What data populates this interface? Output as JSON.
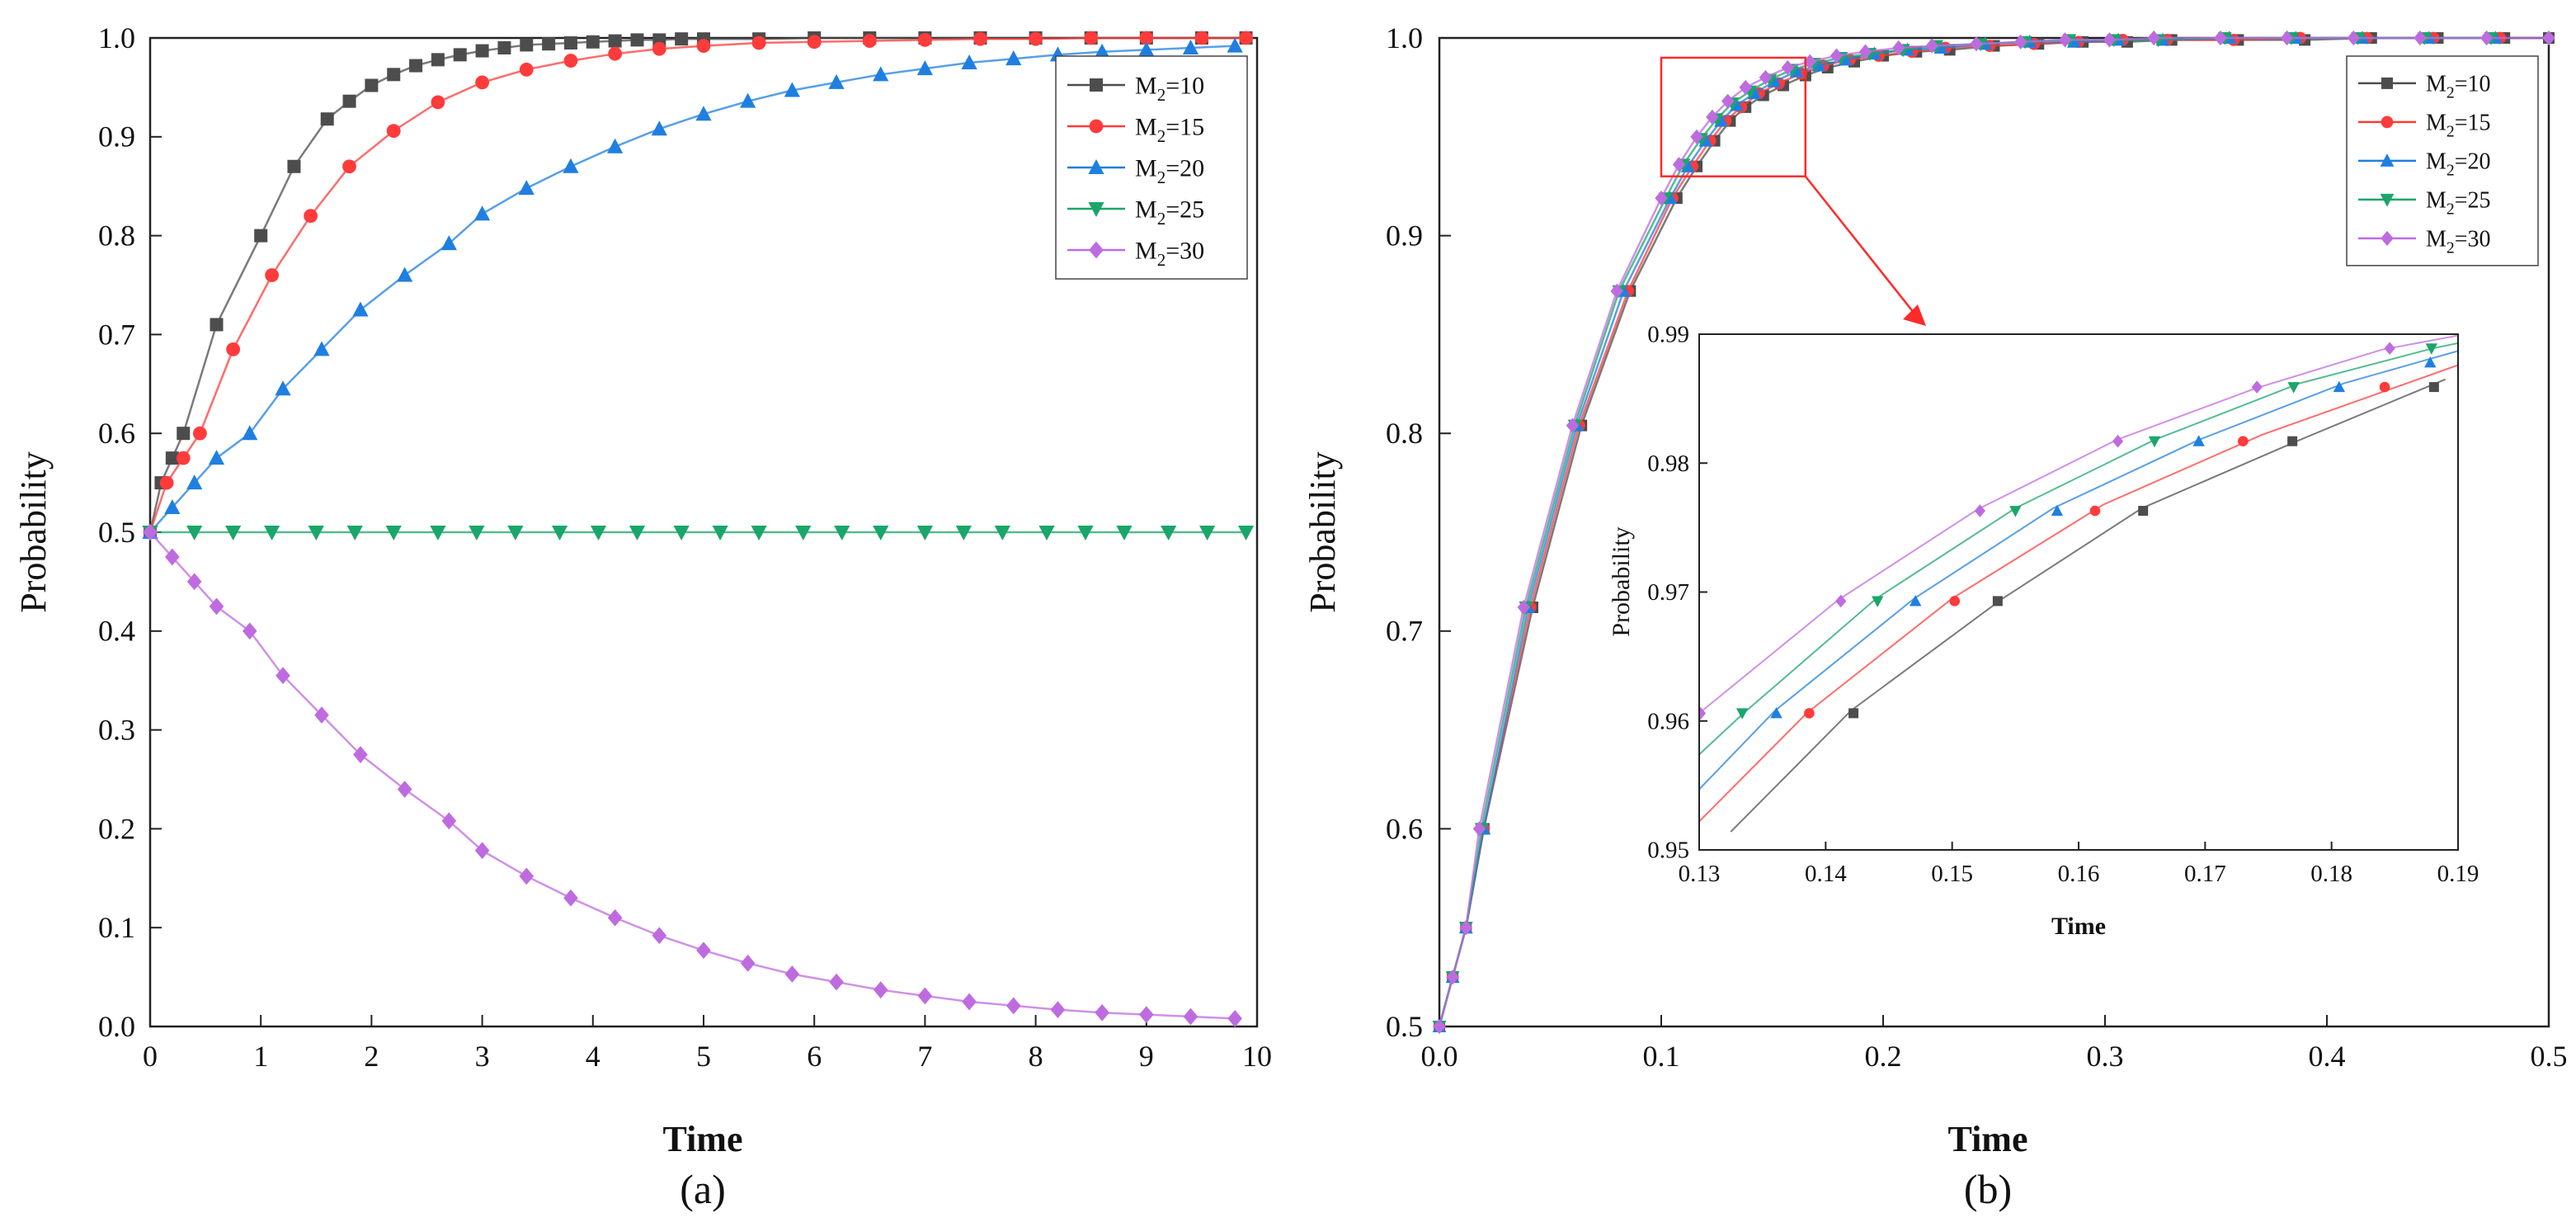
{
  "colors": {
    "M2=10": "#4d4d4d",
    "M2=15": "#ff3b3b",
    "M2=20": "#1f7fe0",
    "M2=25": "#1aa66a",
    "M2=30": "#bf6be0"
  },
  "chart_data": [
    {
      "id": "a",
      "type": "line",
      "panel_label": "(a)",
      "xlabel": "Time",
      "ylabel": "Probability",
      "xlim": [
        0,
        10
      ],
      "ylim": [
        0,
        1
      ],
      "xticks": [
        "0",
        "1",
        "2",
        "3",
        "4",
        "5",
        "6",
        "7",
        "8",
        "9",
        "10"
      ],
      "yticks": [
        "0.0",
        "0.1",
        "0.2",
        "0.3",
        "0.4",
        "0.5",
        "0.6",
        "0.7",
        "0.8",
        "0.9",
        "1.0"
      ],
      "legend_position": "top-right",
      "series": [
        {
          "name": "M2=10",
          "label_main": "M",
          "label_sub": "2",
          "label_rest": "=10",
          "marker": "square",
          "x": [
            0,
            0.1,
            0.2,
            0.3,
            0.6,
            1.0,
            1.3,
            1.6,
            1.8,
            2.0,
            2.2,
            2.4,
            2.6,
            2.8,
            3.0,
            3.2,
            3.4,
            3.6,
            3.8,
            4.0,
            4.2,
            4.4,
            4.6,
            4.8,
            5.0,
            5.5,
            6.0,
            6.5,
            7.0,
            7.5,
            8.0,
            8.5,
            9.0,
            9.5,
            9.9
          ],
          "y": [
            0.5,
            0.55,
            0.575,
            0.6,
            0.71,
            0.8,
            0.87,
            0.918,
            0.936,
            0.952,
            0.963,
            0.972,
            0.978,
            0.983,
            0.987,
            0.99,
            0.993,
            0.994,
            0.995,
            0.996,
            0.997,
            0.998,
            0.998,
            0.999,
            0.999,
            0.999,
            1.0,
            1.0,
            1.0,
            1.0,
            1.0,
            1.0,
            1.0,
            1.0,
            1.0
          ]
        },
        {
          "name": "M2=15",
          "label_main": "M",
          "label_sub": "2",
          "label_rest": "=15",
          "marker": "circle",
          "x": [
            0,
            0.15,
            0.3,
            0.45,
            0.75,
            1.1,
            1.45,
            1.8,
            2.2,
            2.6,
            3.0,
            3.4,
            3.8,
            4.2,
            4.6,
            5.0,
            5.5,
            6.0,
            6.5,
            7.0,
            7.5,
            8.0,
            8.5,
            9.0,
            9.5,
            9.9
          ],
          "y": [
            0.5,
            0.55,
            0.575,
            0.6,
            0.685,
            0.76,
            0.82,
            0.87,
            0.906,
            0.935,
            0.955,
            0.968,
            0.977,
            0.984,
            0.989,
            0.992,
            0.995,
            0.996,
            0.997,
            0.998,
            0.999,
            0.999,
            1.0,
            1.0,
            1.0,
            1.0
          ]
        },
        {
          "name": "M2=20",
          "label_main": "M",
          "label_sub": "2",
          "label_rest": "=20",
          "marker": "triangle-up",
          "x": [
            0,
            0.2,
            0.4,
            0.6,
            0.9,
            1.2,
            1.55,
            1.9,
            2.3,
            2.7,
            3.0,
            3.4,
            3.8,
            4.2,
            4.6,
            5.0,
            5.4,
            5.8,
            6.2,
            6.6,
            7.0,
            7.4,
            7.8,
            8.2,
            8.6,
            9.0,
            9.4,
            9.8
          ],
          "y": [
            0.5,
            0.525,
            0.55,
            0.575,
            0.6,
            0.645,
            0.685,
            0.725,
            0.76,
            0.792,
            0.822,
            0.848,
            0.87,
            0.89,
            0.908,
            0.923,
            0.936,
            0.947,
            0.955,
            0.963,
            0.969,
            0.975,
            0.979,
            0.983,
            0.986,
            0.988,
            0.99,
            0.992
          ]
        },
        {
          "name": "M2=25",
          "label_main": "M",
          "label_sub": "2",
          "label_rest": "=25",
          "marker": "triangle-down",
          "x": [
            0.0,
            0.4,
            0.75,
            1.1,
            1.5,
            1.85,
            2.2,
            2.6,
            2.95,
            3.3,
            3.7,
            4.05,
            4.4,
            4.8,
            5.15,
            5.5,
            5.9,
            6.25,
            6.6,
            7.0,
            7.35,
            7.7,
            8.1,
            8.45,
            8.8,
            9.2,
            9.55,
            9.9
          ],
          "y": [
            0.5,
            0.5,
            0.5,
            0.5,
            0.5,
            0.5,
            0.5,
            0.5,
            0.5,
            0.5,
            0.5,
            0.5,
            0.5,
            0.5,
            0.5,
            0.5,
            0.5,
            0.5,
            0.5,
            0.5,
            0.5,
            0.5,
            0.5,
            0.5,
            0.5,
            0.5,
            0.5,
            0.5
          ]
        },
        {
          "name": "M2=30",
          "label_main": "M",
          "label_sub": "2",
          "label_rest": "=30",
          "marker": "diamond",
          "x": [
            0,
            0.2,
            0.4,
            0.6,
            0.9,
            1.2,
            1.55,
            1.9,
            2.3,
            2.7,
            3.0,
            3.4,
            3.8,
            4.2,
            4.6,
            5.0,
            5.4,
            5.8,
            6.2,
            6.6,
            7.0,
            7.4,
            7.8,
            8.2,
            8.6,
            9.0,
            9.4,
            9.8
          ],
          "y": [
            0.5,
            0.475,
            0.45,
            0.425,
            0.4,
            0.355,
            0.315,
            0.275,
            0.24,
            0.208,
            0.178,
            0.152,
            0.13,
            0.11,
            0.092,
            0.077,
            0.064,
            0.053,
            0.045,
            0.037,
            0.031,
            0.025,
            0.021,
            0.017,
            0.014,
            0.012,
            0.01,
            0.008
          ]
        }
      ]
    },
    {
      "id": "b",
      "type": "line",
      "panel_label": "(b)",
      "xlabel": "Time",
      "ylabel": "Probability",
      "xlim": [
        0,
        0.5
      ],
      "ylim": [
        0.5,
        1.0
      ],
      "xticks": [
        "0.0",
        "0.1",
        "0.2",
        "0.3",
        "0.4",
        "0.5"
      ],
      "yticks": [
        "0.5",
        "0.6",
        "0.7",
        "0.8",
        "0.9",
        "1.0"
      ],
      "legend_position": "top-right",
      "series": [
        {
          "name": "M2=10",
          "label_main": "M",
          "label_sub": "2",
          "label_rest": "=10",
          "marker": "square",
          "x": [
            0,
            0.006,
            0.012,
            0.02,
            0.042,
            0.064,
            0.086,
            0.107,
            0.116,
            0.124,
            0.131,
            0.138,
            0.146,
            0.155,
            0.165,
            0.175,
            0.187,
            0.2,
            0.215,
            0.23,
            0.25,
            0.27,
            0.29,
            0.31,
            0.33,
            0.36,
            0.39,
            0.42,
            0.45,
            0.48,
            0.5
          ],
          "y": [
            0.5,
            0.525,
            0.55,
            0.6,
            0.712,
            0.804,
            0.872,
            0.919,
            0.935,
            0.948,
            0.958,
            0.965,
            0.971,
            0.976,
            0.981,
            0.985,
            0.988,
            0.991,
            0.993,
            0.994,
            0.996,
            0.997,
            0.998,
            0.998,
            0.999,
            0.999,
            0.999,
            1.0,
            1.0,
            1.0,
            1.0
          ]
        },
        {
          "name": "M2=15",
          "label_main": "M",
          "label_sub": "2",
          "label_rest": "=15",
          "marker": "circle",
          "x": [
            0,
            0.006,
            0.012,
            0.02,
            0.041,
            0.063,
            0.085,
            0.105,
            0.114,
            0.122,
            0.129,
            0.136,
            0.144,
            0.153,
            0.163,
            0.173,
            0.185,
            0.198,
            0.213,
            0.228,
            0.248,
            0.268,
            0.288,
            0.308,
            0.328,
            0.358,
            0.388,
            0.418,
            0.448,
            0.478
          ],
          "y": [
            0.5,
            0.525,
            0.55,
            0.6,
            0.712,
            0.804,
            0.872,
            0.919,
            0.935,
            0.948,
            0.958,
            0.965,
            0.972,
            0.977,
            0.982,
            0.986,
            0.989,
            0.991,
            0.993,
            0.995,
            0.996,
            0.997,
            0.998,
            0.999,
            0.999,
            0.999,
            1.0,
            1.0,
            1.0,
            1.0
          ]
        },
        {
          "name": "M2=20",
          "label_main": "M",
          "label_sub": "2",
          "label_rest": "=20",
          "marker": "triangle-up",
          "x": [
            0,
            0.006,
            0.012,
            0.02,
            0.04,
            0.062,
            0.083,
            0.104,
            0.112,
            0.12,
            0.127,
            0.134,
            0.142,
            0.151,
            0.161,
            0.171,
            0.183,
            0.196,
            0.211,
            0.226,
            0.246,
            0.266,
            0.286,
            0.306,
            0.326,
            0.356,
            0.386,
            0.416,
            0.446,
            0.476
          ],
          "y": [
            0.5,
            0.525,
            0.55,
            0.6,
            0.712,
            0.804,
            0.872,
            0.919,
            0.935,
            0.948,
            0.958,
            0.966,
            0.972,
            0.978,
            0.983,
            0.986,
            0.989,
            0.992,
            0.994,
            0.995,
            0.997,
            0.998,
            0.998,
            0.999,
            0.999,
            1.0,
            1.0,
            1.0,
            1.0,
            1.0
          ]
        },
        {
          "name": "M2=25",
          "label_main": "M",
          "label_sub": "2",
          "label_rest": "=25",
          "marker": "triangle-down",
          "x": [
            0,
            0.006,
            0.012,
            0.019,
            0.039,
            0.061,
            0.081,
            0.102,
            0.11,
            0.118,
            0.125,
            0.132,
            0.14,
            0.149,
            0.159,
            0.169,
            0.181,
            0.194,
            0.209,
            0.224,
            0.244,
            0.264,
            0.284,
            0.304,
            0.324,
            0.354,
            0.384,
            0.414,
            0.444,
            0.474
          ],
          "y": [
            0.5,
            0.525,
            0.55,
            0.6,
            0.712,
            0.804,
            0.872,
            0.919,
            0.936,
            0.949,
            0.959,
            0.967,
            0.973,
            0.979,
            0.984,
            0.987,
            0.99,
            0.992,
            0.994,
            0.996,
            0.997,
            0.998,
            0.999,
            0.999,
            0.999,
            1.0,
            1.0,
            1.0,
            1.0,
            1.0
          ]
        },
        {
          "name": "M2=30",
          "label_main": "M",
          "label_sub": "2",
          "label_rest": "=30",
          "marker": "diamond",
          "x": [
            0,
            0.006,
            0.012,
            0.018,
            0.038,
            0.06,
            0.08,
            0.1,
            0.108,
            0.116,
            0.123,
            0.13,
            0.138,
            0.147,
            0.157,
            0.167,
            0.179,
            0.192,
            0.207,
            0.222,
            0.242,
            0.262,
            0.282,
            0.302,
            0.322,
            0.352,
            0.382,
            0.412,
            0.442,
            0.472,
            0.5
          ],
          "y": [
            0.5,
            0.525,
            0.55,
            0.6,
            0.712,
            0.804,
            0.872,
            0.919,
            0.936,
            0.95,
            0.96,
            0.968,
            0.975,
            0.98,
            0.985,
            0.988,
            0.991,
            0.993,
            0.995,
            0.996,
            0.997,
            0.998,
            0.999,
            0.999,
            1.0,
            1.0,
            1.0,
            1.0,
            1.0,
            1.0,
            1.0
          ]
        }
      ]
    },
    {
      "id": "b-inset",
      "type": "line",
      "xlabel": "Time",
      "ylabel": "Probability",
      "xlim": [
        0.13,
        0.19
      ],
      "ylim": [
        0.95,
        0.99
      ],
      "xticks": [
        "0.13",
        "0.14",
        "0.15",
        "0.16",
        "0.17",
        "0.18",
        "0.19"
      ],
      "yticks": [
        "0.95",
        "0.96",
        "0.97",
        "0.98",
        "0.99"
      ],
      "zoom_region": {
        "x": [
          0.1,
          0.165
        ],
        "y": [
          0.93,
          0.99
        ]
      },
      "series": [
        {
          "name": "M2=10",
          "marker": "square",
          "x": [
            0.1325,
            0.142,
            0.154,
            0.165,
            0.1775,
            0.189
          ],
          "y": [
            0.9514,
            0.9608,
            0.9695,
            0.9765,
            0.9818,
            0.9865
          ],
          "marker_x": [
            0.1422,
            0.1536,
            0.1651,
            0.1769,
            0.1881
          ],
          "marker_y": [
            0.9606,
            0.9693,
            0.9763,
            0.9817,
            0.9859
          ]
        },
        {
          "name": "M2=15",
          "marker": "circle",
          "x": [
            0.13,
            0.1385,
            0.15,
            0.162,
            0.1745,
            0.19
          ],
          "y": [
            0.9522,
            0.9606,
            0.9695,
            0.9768,
            0.9822,
            0.9876
          ],
          "marker_x": [
            0.1387,
            0.1502,
            0.1613,
            0.173,
            0.1842
          ],
          "marker_y": [
            0.9606,
            0.9693,
            0.9763,
            0.9817,
            0.9859
          ]
        },
        {
          "name": "M2=20",
          "marker": "triangle-up",
          "x": [
            0.13,
            0.136,
            0.147,
            0.158,
            0.1695,
            0.181,
            0.19
          ],
          "y": [
            0.9547,
            0.9608,
            0.9695,
            0.9765,
            0.9818,
            0.9862,
            0.9887
          ],
          "marker_x": [
            0.1361,
            0.1471,
            0.1583,
            0.1695,
            0.1806,
            0.1878
          ],
          "marker_y": [
            0.9606,
            0.9693,
            0.9763,
            0.9817,
            0.9859,
            0.9878
          ]
        },
        {
          "name": "M2=25",
          "marker": "triangle-down",
          "x": [
            0.13,
            0.1335,
            0.144,
            0.155,
            0.166,
            0.1775,
            0.188,
            0.19
          ],
          "y": [
            0.9574,
            0.9606,
            0.9695,
            0.9765,
            0.9818,
            0.9862,
            0.9889,
            0.9893
          ],
          "marker_x": [
            0.1334,
            0.1441,
            0.155,
            0.166,
            0.177,
            0.1879
          ],
          "marker_y": [
            0.9606,
            0.9693,
            0.9763,
            0.9817,
            0.9859,
            0.9889
          ]
        },
        {
          "name": "M2=30",
          "marker": "diamond",
          "x": [
            0.13,
            0.141,
            0.152,
            0.163,
            0.174,
            0.184,
            0.19
          ],
          "y": [
            0.9606,
            0.9694,
            0.9764,
            0.9818,
            0.9858,
            0.9888,
            0.9899
          ],
          "marker_x": [
            0.1301,
            0.1412,
            0.1522,
            0.1631,
            0.1741,
            0.1846
          ],
          "marker_y": [
            0.9606,
            0.9693,
            0.9763,
            0.9817,
            0.9859,
            0.9889
          ]
        }
      ]
    }
  ]
}
